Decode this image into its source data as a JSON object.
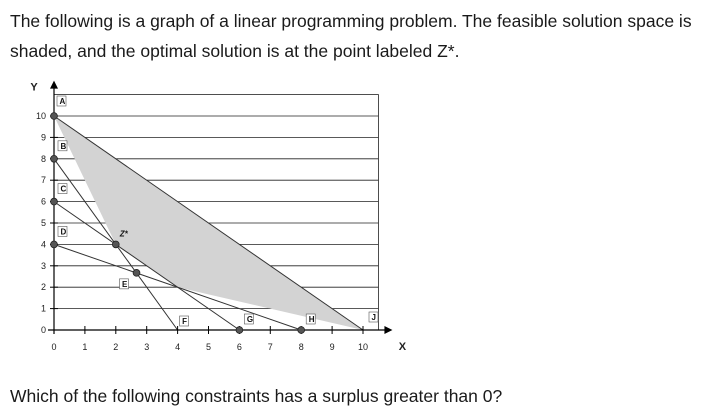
{
  "question": {
    "intro": "The following is a graph of a linear programming problem. The feasible solution space is shaded, and the optimal solution is at the point labeled Z*.",
    "prompt": "Which of the following constraints has a surplus greater than 0?"
  },
  "chart_data": {
    "type": "line",
    "title": "",
    "xlabel": "X",
    "ylabel": "Y",
    "xlim": [
      0,
      10.5
    ],
    "ylim": [
      0,
      11
    ],
    "x_ticks": [
      "0",
      "1",
      "2",
      "3",
      "4",
      "5",
      "6",
      "7",
      "8",
      "9",
      "10"
    ],
    "y_ticks": [
      "0",
      "1",
      "2",
      "3",
      "4",
      "5",
      "6",
      "7",
      "8",
      "9",
      "10"
    ],
    "grid": "horizontal",
    "feasible_region": [
      [
        0,
        10
      ],
      [
        10,
        0
      ],
      [
        4,
        2
      ],
      [
        2,
        4
      ]
    ],
    "feasible_color": "#d3d3d3",
    "constraint_lines": [
      {
        "from": "A",
        "to": "J",
        "p1": [
          0,
          10
        ],
        "p2": [
          10,
          0
        ]
      },
      {
        "from": "B",
        "to": "F",
        "p1": [
          0,
          8
        ],
        "p2": [
          4,
          0
        ]
      },
      {
        "from": "C",
        "to": "G",
        "p1": [
          0,
          6
        ],
        "p2": [
          6,
          0
        ]
      },
      {
        "from": "D",
        "to": "H",
        "p1": [
          0,
          4
        ],
        "p2": [
          8,
          0
        ]
      }
    ],
    "points": [
      {
        "label": "A",
        "x": 0,
        "y": 10,
        "marker": "circle"
      },
      {
        "label": "B",
        "x": 0,
        "y": 8,
        "marker": "circle"
      },
      {
        "label": "C",
        "x": 0,
        "y": 6,
        "marker": "circle"
      },
      {
        "label": "D",
        "x": 0,
        "y": 4,
        "marker": "circle"
      },
      {
        "label": "Z*",
        "x": 2,
        "y": 4,
        "marker": "circle"
      },
      {
        "label": "E",
        "x": 2.67,
        "y": 2.67,
        "marker": "circle"
      },
      {
        "label": "F",
        "x": 4,
        "y": 0,
        "marker": "none"
      },
      {
        "label": "G",
        "x": 6,
        "y": 0,
        "marker": "circle"
      },
      {
        "label": "H",
        "x": 8,
        "y": 0,
        "marker": "circle"
      },
      {
        "label": "J",
        "x": 10,
        "y": 0,
        "marker": "none"
      }
    ],
    "colors": {
      "line": "#333333",
      "grid": "#222222",
      "point": "#555555"
    }
  }
}
